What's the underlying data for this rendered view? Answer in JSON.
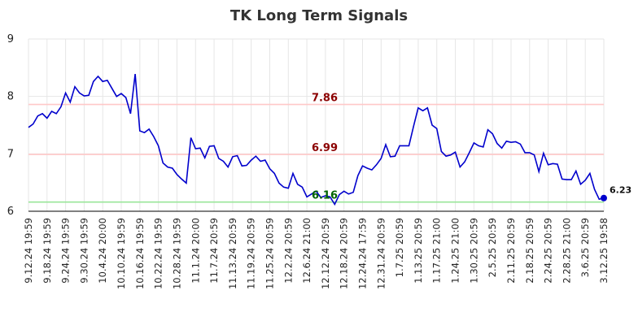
{
  "chart_data": {
    "type": "line",
    "title": "TK Long Term Signals",
    "xlabel": "",
    "ylabel": "",
    "ylim": [
      6,
      9
    ],
    "yticks": [
      "6",
      "7",
      "8",
      "9"
    ],
    "grid": true,
    "x_tick_labels": [
      "9.12.24 19:59",
      "9.18.24 19:59",
      "9.24.24 19:59",
      "9.30.24 19:59",
      "10.4.24 20:00",
      "10.10.24 19:59",
      "10.16.24 19:59",
      "10.22.24 19:59",
      "10.28.24 19:59",
      "11.1.24 20:00",
      "11.7.24 20:59",
      "11.13.24 20:59",
      "11.19.24 20:59",
      "11.25.24 20:59",
      "12.2.24 20:59",
      "12.6.24 21:00",
      "12.12.24 20:59",
      "12.18.24 20:59",
      "12.24.24 17:59",
      "12.31.24 20:59",
      "1.7.25 20:59",
      "1.13.25 20:59",
      "1.17.25 21:00",
      "1.24.25 21:00",
      "1.30.25 20:59",
      "2.5.25 20:59",
      "2.11.25 20:59",
      "2.18.25 20:59",
      "2.24.25 20:59",
      "2.28.25 21:00",
      "3.6.25 20:59",
      "3.12.25 19:58"
    ],
    "values": [
      7.46,
      7.52,
      7.66,
      7.7,
      7.62,
      7.74,
      7.7,
      7.82,
      8.06,
      7.9,
      8.17,
      8.06,
      8.01,
      8.02,
      8.26,
      8.35,
      8.26,
      8.28,
      8.14,
      8.0,
      8.05,
      7.98,
      7.7,
      8.39,
      7.4,
      7.37,
      7.43,
      7.3,
      7.14,
      6.84,
      6.77,
      6.75,
      6.64,
      6.56,
      6.49,
      7.28,
      7.09,
      7.1,
      6.93,
      7.13,
      7.14,
      6.92,
      6.87,
      6.77,
      6.95,
      6.97,
      6.79,
      6.8,
      6.89,
      6.96,
      6.87,
      6.89,
      6.74,
      6.66,
      6.49,
      6.42,
      6.4,
      6.66,
      6.47,
      6.42,
      6.25,
      6.3,
      6.35,
      6.24,
      6.27,
      6.25,
      6.12,
      6.29,
      6.35,
      6.3,
      6.33,
      6.62,
      6.79,
      6.75,
      6.72,
      6.81,
      6.92,
      7.16,
      6.95,
      6.96,
      7.14,
      7.14,
      7.14,
      7.48,
      7.8,
      7.75,
      7.8,
      7.5,
      7.44,
      7.04,
      6.96,
      6.98,
      7.03,
      6.77,
      6.86,
      7.02,
      7.19,
      7.14,
      7.12,
      7.42,
      7.35,
      7.18,
      7.1,
      7.22,
      7.2,
      7.21,
      7.17,
      7.02,
      7.02,
      6.98,
      6.69,
      7.01,
      6.81,
      6.83,
      6.82,
      6.56,
      6.55,
      6.55,
      6.7,
      6.47,
      6.54,
      6.66,
      6.38,
      6.21,
      6.23
    ],
    "levels": [
      {
        "value": 7.86,
        "label": "7.86",
        "line_color": "#ffc8c8",
        "label_color": "#8b0000"
      },
      {
        "value": 6.99,
        "label": "6.99",
        "line_color": "#ffc8c8",
        "label_color": "#8b0000"
      },
      {
        "value": 6.16,
        "label": "6.16",
        "line_color": "#99e699",
        "label_color": "#006400"
      }
    ],
    "last_value_label": "6.23",
    "colors": {
      "line": "#0000cc",
      "grid": "#e6e6e6",
      "axis": "#000000"
    }
  }
}
